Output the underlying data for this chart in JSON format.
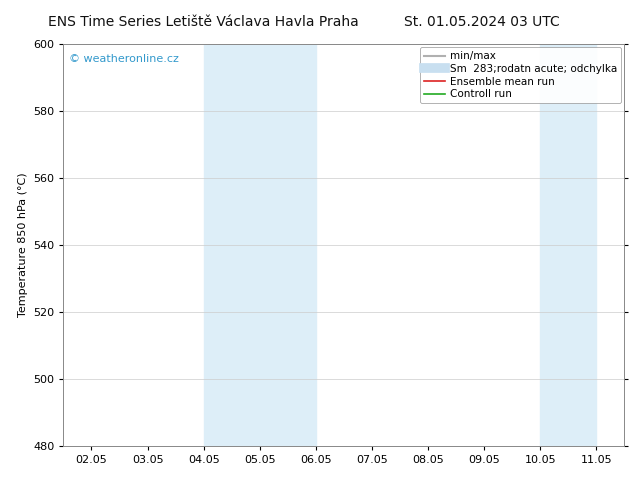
{
  "title_left": "ENS Time Series Letiště Václava Havla Praha",
  "title_right": "St. 01.05.2024 03 UTC",
  "ylabel": "Temperature 850 hPa (°C)",
  "ylim": [
    480,
    600
  ],
  "yticks": [
    480,
    500,
    520,
    540,
    560,
    580,
    600
  ],
  "xtick_labels": [
    "02.05",
    "03.05",
    "04.05",
    "05.05",
    "06.05",
    "07.05",
    "08.05",
    "09.05",
    "10.05",
    "11.05"
  ],
  "xtick_positions": [
    0,
    1,
    2,
    3,
    4,
    5,
    6,
    7,
    8,
    9
  ],
  "xlim": [
    -0.5,
    9.5
  ],
  "shaded_bands": [
    {
      "xmin": 2.0,
      "xmax": 3.0,
      "color": "#ddeef8"
    },
    {
      "xmin": 3.0,
      "xmax": 4.0,
      "color": "#ddeef8"
    },
    {
      "xmin": 8.0,
      "xmax": 9.0,
      "color": "#ddeef8"
    }
  ],
  "watermark": "© weatheronline.cz",
  "watermark_color": "#3399cc",
  "legend_entries": [
    {
      "label": "min/max",
      "color": "#b0b0b0",
      "linestyle": "-",
      "linewidth": 1.5
    },
    {
      "label": "Sm  283;rodatn acute; odchylka",
      "color": "#c8dff0",
      "linestyle": "-",
      "linewidth": 7
    },
    {
      "label": "Ensemble mean run",
      "color": "#dd2222",
      "linestyle": "-",
      "linewidth": 1.2
    },
    {
      "label": "Controll run",
      "color": "#22aa22",
      "linestyle": "-",
      "linewidth": 1.2
    }
  ],
  "background_color": "#ffffff",
  "plot_bg_color": "#ffffff",
  "grid_color": "#cccccc",
  "title_fontsize": 10,
  "axis_fontsize": 8,
  "tick_fontsize": 8,
  "legend_fontsize": 7.5
}
